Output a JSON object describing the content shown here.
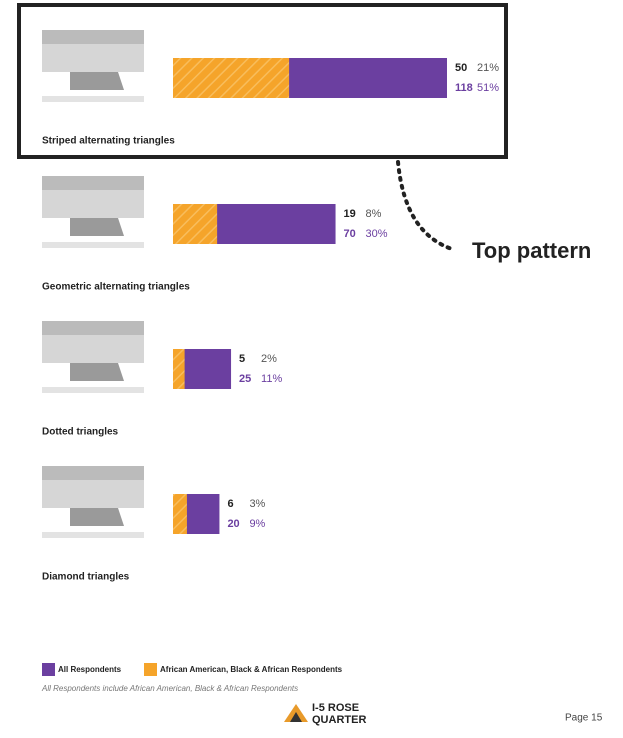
{
  "chart_data": {
    "type": "overlay-bar",
    "categories": [
      "Striped alternating triangles",
      "Geometric alternating triangles",
      "Dotted triangles",
      "Diamond triangles"
    ],
    "series": [
      {
        "name": "All Respondents",
        "color": "#6b3fa0",
        "values": [
          118,
          70,
          25,
          20
        ],
        "percent_labels": [
          "51%",
          "30%",
          "11%",
          "9%"
        ]
      },
      {
        "name": "African American, Black & African Respondents",
        "color": "#f5a42a",
        "values": [
          50,
          19,
          5,
          6
        ],
        "percent_labels": [
          "21%",
          "8%",
          "2%",
          "3%"
        ]
      }
    ],
    "highlight_index": 0,
    "annotation": "Top pattern",
    "note": "All Respondents include African American, Black & African Respondents",
    "logo": {
      "line1": "I-5 ROSE",
      "line2": "QUARTER"
    },
    "page": "Page 15"
  }
}
